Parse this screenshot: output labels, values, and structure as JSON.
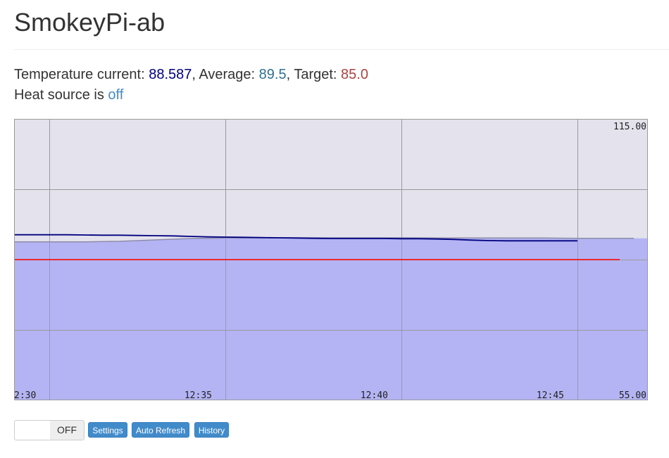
{
  "header": {
    "title": "SmokeyPi-ab"
  },
  "status": {
    "temp_label": "Temperature current: ",
    "temp_value": "88.587",
    "avg_label": ", Average: ",
    "avg_value": "89.5",
    "target_label": ", Target: ",
    "target_value": "85.0",
    "heat_label": "Heat source is ",
    "heat_value": "off"
  },
  "controls": {
    "toggle_label": "OFF",
    "settings_label": "Settings",
    "refresh_label": "Auto Refresh",
    "history_label": "History"
  },
  "colors": {
    "plot_bg": "#e4e2ec",
    "grid": "#9a9a9a",
    "current": "#000080",
    "average_fill": "#b4b4f4",
    "average_line": "#8c8ca8",
    "target": "#ff0000"
  },
  "chart_data": {
    "type": "line",
    "title": "",
    "xlabel": "",
    "ylabel": "",
    "ylim": [
      55,
      115
    ],
    "y_tick_labels": [
      "115.00",
      "55.00"
    ],
    "x_tick_labels": [
      "2:30",
      "12:35",
      "12:40",
      "12:45"
    ],
    "grid": true,
    "series": [
      {
        "role": "current",
        "x": [
          0,
          0.5,
          1,
          1.5,
          2,
          2.5,
          3,
          3.5,
          4,
          4.5,
          5,
          5.5,
          6,
          6.5,
          7,
          7.5,
          8,
          8.5,
          9,
          9.5,
          10,
          10.5,
          11,
          11.5,
          12,
          12.5,
          13,
          13.5,
          14,
          14.5,
          15,
          15.5,
          16
        ],
        "values": [
          90.3,
          90.3,
          90.3,
          90.3,
          90.25,
          90.2,
          90.2,
          90.15,
          90.1,
          90.05,
          89.95,
          89.85,
          89.8,
          89.75,
          89.7,
          89.65,
          89.6,
          89.55,
          89.5,
          89.5,
          89.5,
          89.5,
          89.45,
          89.45,
          89.4,
          89.3,
          89.15,
          89.05,
          89.0,
          89.0,
          89.0,
          89.0,
          89.0
        ]
      },
      {
        "role": "average",
        "x": [
          0,
          1,
          2,
          3,
          4,
          5,
          6,
          7,
          8,
          9,
          10,
          11,
          12,
          13,
          14,
          15,
          16,
          17.6
        ],
        "values": [
          88.8,
          88.8,
          88.8,
          88.9,
          89.2,
          89.5,
          89.6,
          89.65,
          89.65,
          89.65,
          89.65,
          89.65,
          89.6,
          89.6,
          89.6,
          89.6,
          89.55,
          89.55
        ]
      },
      {
        "role": "target",
        "x": [
          0,
          17.2
        ],
        "values": [
          85.0,
          85.0
        ]
      }
    ]
  }
}
